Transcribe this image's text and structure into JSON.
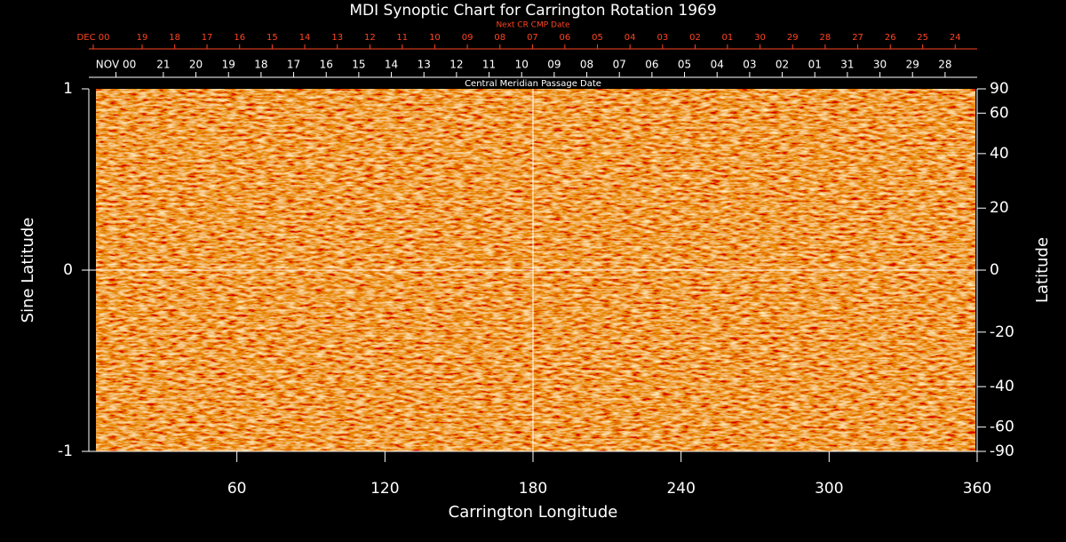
{
  "chart_data": {
    "type": "synoptic",
    "title": "MDI Synoptic Chart for Carrington Rotation 1969",
    "xlabel": "Carrington Longitude",
    "ylabel": "Sine Latitude",
    "y2label": "Latitude",
    "x2label": "Central Meridian Passage Date",
    "x3label": "Next CR CMP Date",
    "xlim": [
      0,
      360
    ],
    "xticks": [
      60,
      120,
      180,
      240,
      300,
      360
    ],
    "ylim": [
      -1,
      1
    ],
    "yticks": [
      -1,
      0,
      1
    ],
    "y2lim": [
      -90,
      90
    ],
    "y2scale": "sine",
    "y2ticks": [
      90,
      60,
      40,
      20,
      0,
      -20,
      -40,
      -60,
      -90
    ],
    "crosshair": true,
    "x2ticks": [
      {
        "value": 11,
        "label": "NOV 00"
      },
      {
        "value": 30.2,
        "label": "21"
      },
      {
        "value": 43.4,
        "label": "20"
      },
      {
        "value": 56.6,
        "label": "19"
      },
      {
        "value": 69.8,
        "label": "18"
      },
      {
        "value": 83.0,
        "label": "17"
      },
      {
        "value": 96.2,
        "label": "16"
      },
      {
        "value": 109.4,
        "label": "15"
      },
      {
        "value": 122.6,
        "label": "14"
      },
      {
        "value": 135.8,
        "label": "13"
      },
      {
        "value": 149.0,
        "label": "12"
      },
      {
        "value": 162.2,
        "label": "11"
      },
      {
        "value": 175.4,
        "label": "10"
      },
      {
        "value": 188.6,
        "label": "09"
      },
      {
        "value": 201.8,
        "label": "08"
      },
      {
        "value": 215.0,
        "label": "07"
      },
      {
        "value": 228.2,
        "label": "06"
      },
      {
        "value": 241.4,
        "label": "05"
      },
      {
        "value": 254.6,
        "label": "04"
      },
      {
        "value": 267.8,
        "label": "03"
      },
      {
        "value": 281.0,
        "label": "02"
      },
      {
        "value": 294.2,
        "label": "01"
      },
      {
        "value": 307.4,
        "label": "31"
      },
      {
        "value": 320.6,
        "label": "30"
      },
      {
        "value": 333.8,
        "label": "29"
      },
      {
        "value": 347.0,
        "label": "28"
      }
    ],
    "x3ticks": [
      {
        "value": 1.8,
        "label": "DEC 00"
      },
      {
        "value": 21.6,
        "label": "19"
      },
      {
        "value": 34.8,
        "label": "18"
      },
      {
        "value": 47.9,
        "label": "17"
      },
      {
        "value": 61.1,
        "label": "16"
      },
      {
        "value": 74.3,
        "label": "15"
      },
      {
        "value": 87.5,
        "label": "14"
      },
      {
        "value": 100.7,
        "label": "13"
      },
      {
        "value": 113.9,
        "label": "12"
      },
      {
        "value": 127.0,
        "label": "11"
      },
      {
        "value": 140.2,
        "label": "10"
      },
      {
        "value": 153.4,
        "label": "09"
      },
      {
        "value": 166.6,
        "label": "08"
      },
      {
        "value": 179.8,
        "label": "07"
      },
      {
        "value": 192.9,
        "label": "06"
      },
      {
        "value": 206.1,
        "label": "05"
      },
      {
        "value": 219.3,
        "label": "04"
      },
      {
        "value": 232.5,
        "label": "03"
      },
      {
        "value": 245.7,
        "label": "02"
      },
      {
        "value": 258.8,
        "label": "01"
      },
      {
        "value": 272.0,
        "label": "30"
      },
      {
        "value": 285.2,
        "label": "29"
      },
      {
        "value": 298.4,
        "label": "28"
      },
      {
        "value": 311.6,
        "label": "27"
      },
      {
        "value": 324.8,
        "label": "26"
      },
      {
        "value": 337.9,
        "label": "25"
      },
      {
        "value": 351.1,
        "label": "24"
      }
    ],
    "x3color": "#ff4422"
  }
}
